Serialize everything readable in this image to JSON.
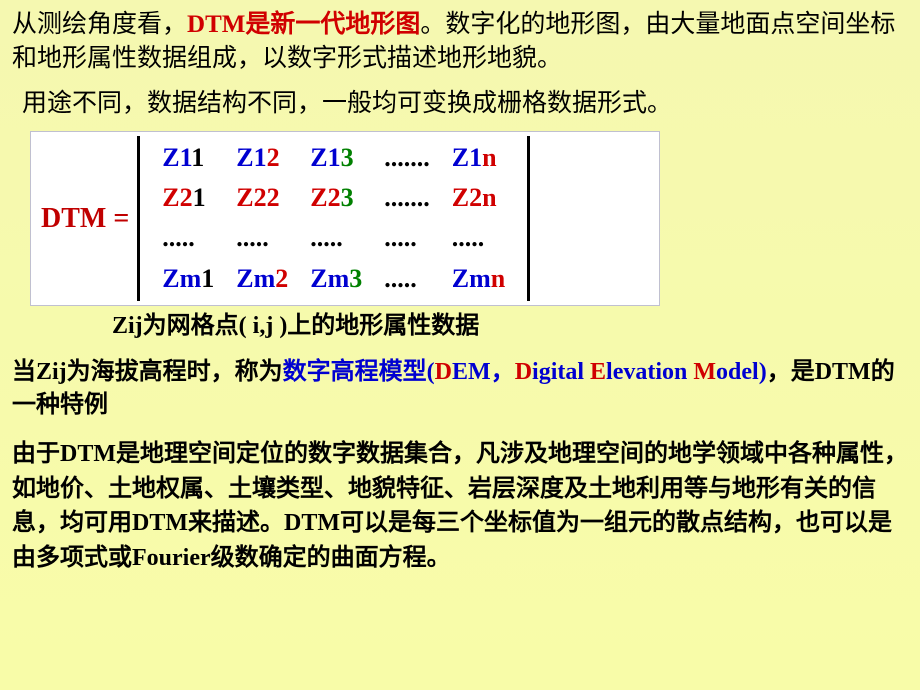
{
  "colors": {
    "red": "#d00000",
    "blue": "#0000d0",
    "green": "#008000",
    "black": "#000000",
    "bg_top": "#f5f8b0",
    "bg_bottom": "#f8fca8",
    "matrix_bg": "#ffffff"
  },
  "p1": {
    "s1": "从测绘角度看，",
    "s2": "DTM是新一代地形图",
    "s3": "。数字化的地形图，由大量地面点空间坐标和地形属性数据组成，以数字形式描述地形地貌。"
  },
  "p2": "用途不同，数据结构不同，一般均可变换成栅格数据形式。",
  "matrix": {
    "label": "DTM =",
    "cells": [
      [
        [
          {
            "t": "Z1",
            "c": "blue"
          },
          {
            "t": "1",
            "c": "black"
          }
        ],
        [
          {
            "t": "Z1",
            "c": "blue"
          },
          {
            "t": "2",
            "c": "red"
          }
        ],
        [
          {
            "t": "Z1",
            "c": "blue"
          },
          {
            "t": "3",
            "c": "green"
          }
        ],
        [
          {
            "t": ".......",
            "c": "black"
          }
        ],
        [
          {
            "t": "Z1",
            "c": "blue"
          },
          {
            "t": "n",
            "c": "red"
          }
        ]
      ],
      [
        [
          {
            "t": "Z2",
            "c": "red"
          },
          {
            "t": "1",
            "c": "black"
          }
        ],
        [
          {
            "t": "Z2",
            "c": "red"
          },
          {
            "t": "2",
            "c": "red"
          }
        ],
        [
          {
            "t": "Z2",
            "c": "red"
          },
          {
            "t": "3",
            "c": "green"
          }
        ],
        [
          {
            "t": ".......",
            "c": "black"
          }
        ],
        [
          {
            "t": "Z2",
            "c": "red"
          },
          {
            "t": "n",
            "c": "red"
          }
        ]
      ],
      [
        [
          {
            "t": ".....",
            "c": "black"
          }
        ],
        [
          {
            "t": ".....",
            "c": "black"
          }
        ],
        [
          {
            "t": ".....",
            "c": "black"
          }
        ],
        [
          {
            "t": ".....",
            "c": "black"
          }
        ],
        [
          {
            "t": ".....",
            "c": "black"
          }
        ]
      ],
      [
        [
          {
            "t": "Zm",
            "c": "blue"
          },
          {
            "t": "1",
            "c": "black"
          }
        ],
        [
          {
            "t": "Zm",
            "c": "blue"
          },
          {
            "t": "2",
            "c": "red"
          }
        ],
        [
          {
            "t": "Zm",
            "c": "blue"
          },
          {
            "t": "3",
            "c": "green"
          }
        ],
        [
          {
            "t": ".....",
            "c": "black"
          }
        ],
        [
          {
            "t": "Zm",
            "c": "blue"
          },
          {
            "t": "n",
            "c": "red"
          }
        ]
      ]
    ]
  },
  "zij_line": "Zij为网格点( i,j )上的地形属性数据",
  "p3": {
    "s1": "当Zij为海拔高程时，称为",
    "s2": "数字高程模型(",
    "s3a": "D",
    "s3b": "EM",
    "s4": "，",
    "s5a": "D",
    "s5b": "igital ",
    "s5c": "E",
    "s5d": "levation ",
    "s5e": "M",
    "s5f": "odel)",
    "s6": "，是DTM的一种特例"
  },
  "p4": "由于DTM是地理空间定位的数字数据集合，凡涉及地理空间的地学领域中各种属性，如地价、土地权属、土壤类型、地貌特征、岩层深度及土地利用等与地形有关的信息，均可用DTM来描述。DTM可以是每三个坐标值为一组元的散点结构，也可以是由多项式或Fourier级数确定的曲面方程。"
}
